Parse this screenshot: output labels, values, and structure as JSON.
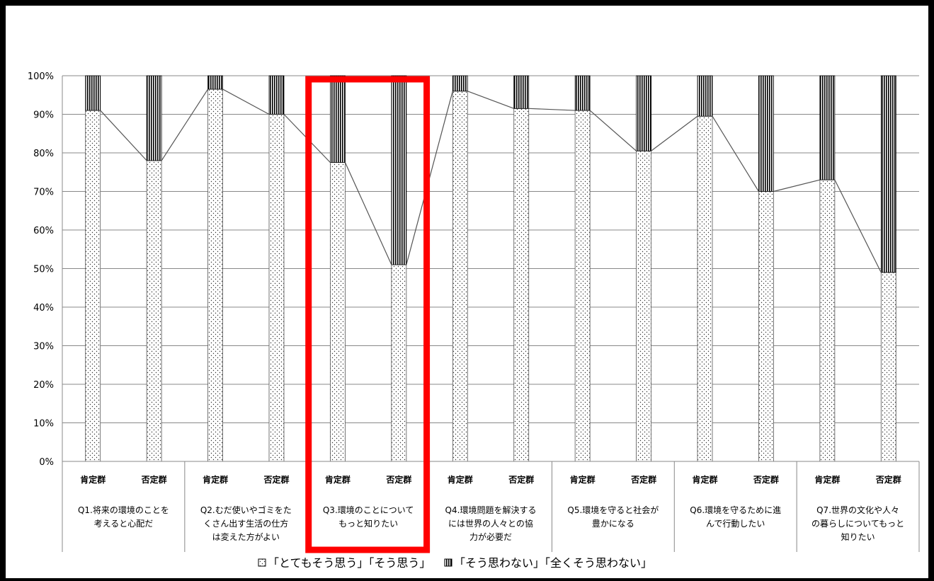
{
  "chart_data": {
    "type": "bar",
    "stacked": true,
    "ylim": [
      0,
      100
    ],
    "y_ticks": [
      "0%",
      "10%",
      "20%",
      "30%",
      "40%",
      "50%",
      "60%",
      "70%",
      "80%",
      "90%",
      "100%"
    ],
    "grid": true,
    "legend_position": "bottom",
    "group_labels": [
      "肯定群",
      "否定群"
    ],
    "questions": [
      {
        "lines": [
          "Q1.将来の環境のことを",
          "考えると心配だ"
        ]
      },
      {
        "lines": [
          "Q2.むだ使いやゴミをた",
          "くさん出す生活の仕方",
          "は変えた方がよい"
        ]
      },
      {
        "lines": [
          "Q3.環境のことについて",
          "もっと知りたい"
        ]
      },
      {
        "lines": [
          "Q4.環境問題を解決する",
          "には世界の人々との協",
          "力が必要だ"
        ]
      },
      {
        "lines": [
          "Q5.環境を守ると社会が",
          "豊かになる"
        ]
      },
      {
        "lines": [
          "Q6.環境を守るために進",
          "んで行動したい"
        ]
      },
      {
        "lines": [
          "Q7.世界の文化や人々",
          "の暮らしについてもっと",
          "知りたい"
        ]
      }
    ],
    "series": [
      {
        "name": "「とてもそう思う」「そう思う」",
        "values": [
          91,
          78,
          96.5,
          90,
          77.5,
          51,
          96,
          91.5,
          91,
          80.5,
          89.5,
          70,
          73,
          49
        ]
      },
      {
        "name": "「そう思わない」「全くそう思わない」",
        "values": [
          9,
          22,
          3.5,
          10,
          22.5,
          49,
          4,
          8.5,
          9,
          19.5,
          10.5,
          30,
          27,
          51
        ]
      }
    ],
    "highlight_question_index": 2,
    "highlight_color": "#ff0000"
  },
  "legend": {
    "item1_label": "「とてもそう思う」「そう思う」",
    "item2_label": "「そう思わない」「全くそう思わない」"
  }
}
